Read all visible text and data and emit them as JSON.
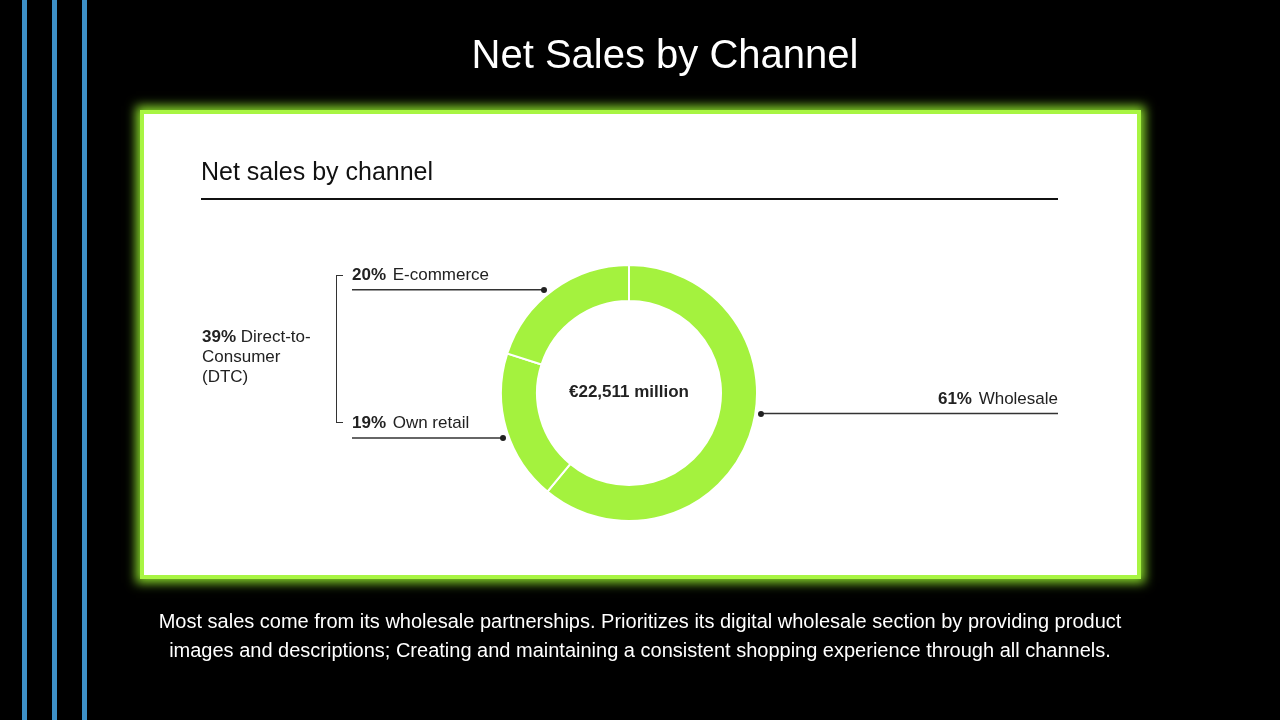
{
  "chart_data": {
    "type": "donut",
    "title": "Net Sales by Channel",
    "subtitle": "Net sales by channel",
    "categories": [
      "Wholesale",
      "Own retail",
      "E-commerce"
    ],
    "values": [
      61,
      19,
      20
    ],
    "colors": [
      "#a4f23e",
      "#a4f23e",
      "#a4f23e"
    ],
    "value_labels": [
      "61%",
      "19%",
      "20%"
    ],
    "annotations": [
      "39% Direct-to-Consumer (DTC)",
      "€22,511 million",
      "Most sales come from its wholesale partnerships. Prioritizes its digital wholesale section by providing product images and descriptions; Creating and maintaining a consistent shopping experience through all channels."
    ]
  }
}
